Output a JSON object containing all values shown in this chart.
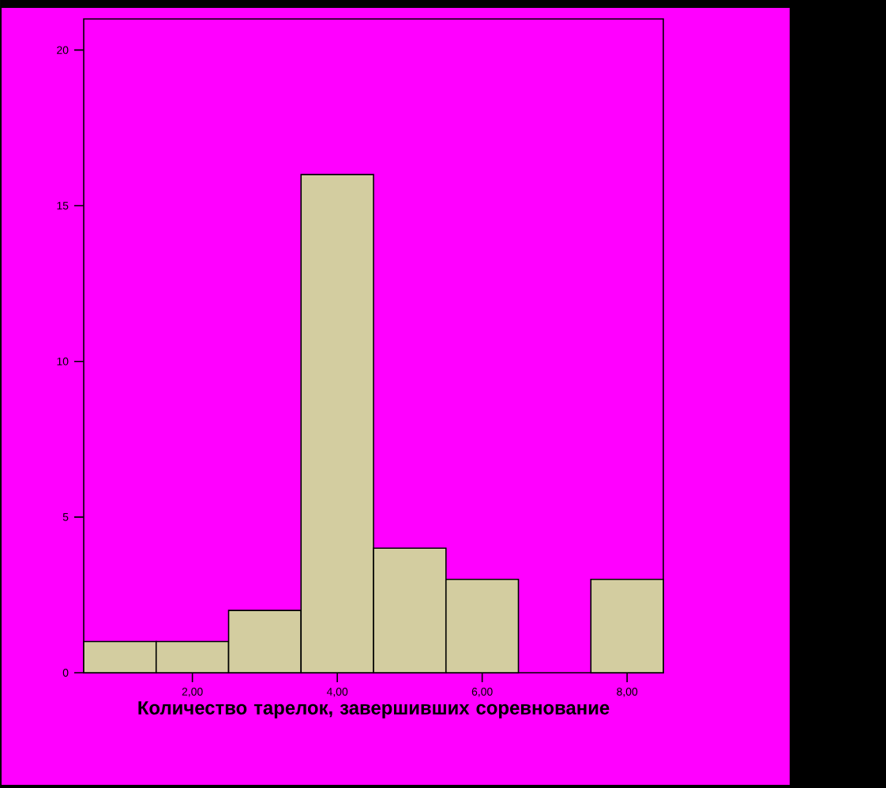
{
  "chart_data": {
    "type": "histogram",
    "bins": [
      0.5,
      1.5,
      2.5,
      3.5,
      4.5,
      5.5,
      6.5,
      7.5,
      8.5
    ],
    "values": [
      1,
      1,
      2,
      16,
      4,
      3,
      0,
      3
    ],
    "color": "#d3cda0",
    "xlabel": "Количество тарелок, завершивших соревнование",
    "xlim": [
      0.5,
      8.5
    ],
    "ylim": [
      0,
      21
    ],
    "xticks": [
      {
        "value": 2,
        "label": "2,00"
      },
      {
        "value": 4,
        "label": "4,00"
      },
      {
        "value": 6,
        "label": "6,00"
      },
      {
        "value": 8,
        "label": "8,00"
      }
    ],
    "yticks": [
      0,
      5,
      10,
      15,
      20
    ]
  }
}
